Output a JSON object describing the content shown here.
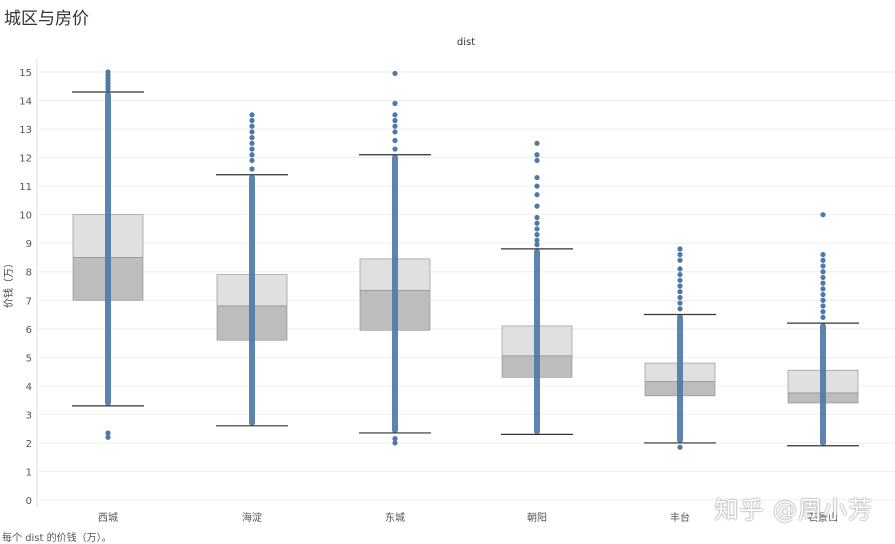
{
  "page": {
    "title": "城区与房价",
    "caption": "每个 dist 的价钱（万）。",
    "watermark": "知乎 @周小芳"
  },
  "chart_data": {
    "type": "box",
    "title": "dist",
    "xlabel": "",
    "ylabel": "价钱（万）",
    "ylim": [
      0,
      15
    ],
    "yticks": [
      0,
      1,
      2,
      3,
      4,
      5,
      6,
      7,
      8,
      9,
      10,
      11,
      12,
      13,
      14,
      15
    ],
    "grid": true,
    "categories": [
      "西城",
      "海淀",
      "东城",
      "朝阳",
      "丰台",
      "石景山"
    ],
    "boxes": [
      {
        "whisker_low": 3.3,
        "q1": 7.0,
        "median": 8.5,
        "q3": 10.0,
        "whisker_high": 14.3,
        "outliers": [
          2.2,
          2.35,
          14.4,
          14.5,
          14.6,
          14.7,
          14.8,
          14.9,
          15.0
        ]
      },
      {
        "whisker_low": 2.6,
        "q1": 5.6,
        "median": 6.8,
        "q3": 7.9,
        "whisker_high": 11.4,
        "outliers": [
          11.6,
          11.9,
          12.1,
          12.3,
          12.5,
          12.7,
          12.9,
          13.1,
          13.3,
          13.5
        ]
      },
      {
        "whisker_low": 2.35,
        "q1": 5.95,
        "median": 7.35,
        "q3": 8.45,
        "whisker_high": 12.1,
        "outliers": [
          2.0,
          2.15,
          12.3,
          12.6,
          12.9,
          13.1,
          13.3,
          13.5,
          13.9,
          14.95
        ]
      },
      {
        "whisker_low": 2.3,
        "q1": 4.3,
        "median": 5.05,
        "q3": 6.1,
        "whisker_high": 8.8,
        "outliers": [
          8.95,
          9.1,
          9.3,
          9.5,
          9.7,
          9.9,
          10.3,
          10.7,
          11.0,
          11.3,
          11.9,
          12.1,
          12.5
        ]
      },
      {
        "whisker_low": 2.0,
        "q1": 3.65,
        "median": 4.15,
        "q3": 4.8,
        "whisker_high": 6.5,
        "outliers": [
          1.85,
          6.7,
          6.9,
          7.1,
          7.3,
          7.5,
          7.7,
          7.9,
          8.1,
          8.4,
          8.6,
          8.8
        ]
      },
      {
        "whisker_low": 1.9,
        "q1": 3.4,
        "median": 3.75,
        "q3": 4.55,
        "whisker_high": 6.2,
        "outliers": [
          6.4,
          6.6,
          6.8,
          7.0,
          7.2,
          7.4,
          7.6,
          7.8,
          8.0,
          8.2,
          8.4,
          8.6,
          10.0
        ]
      }
    ],
    "colors": {
      "points": "#4e79a7",
      "box_upper": "#e0e0e0",
      "box_lower": "#bdbdbd",
      "whisker": "#333333",
      "grid": "#eeeeee"
    }
  }
}
